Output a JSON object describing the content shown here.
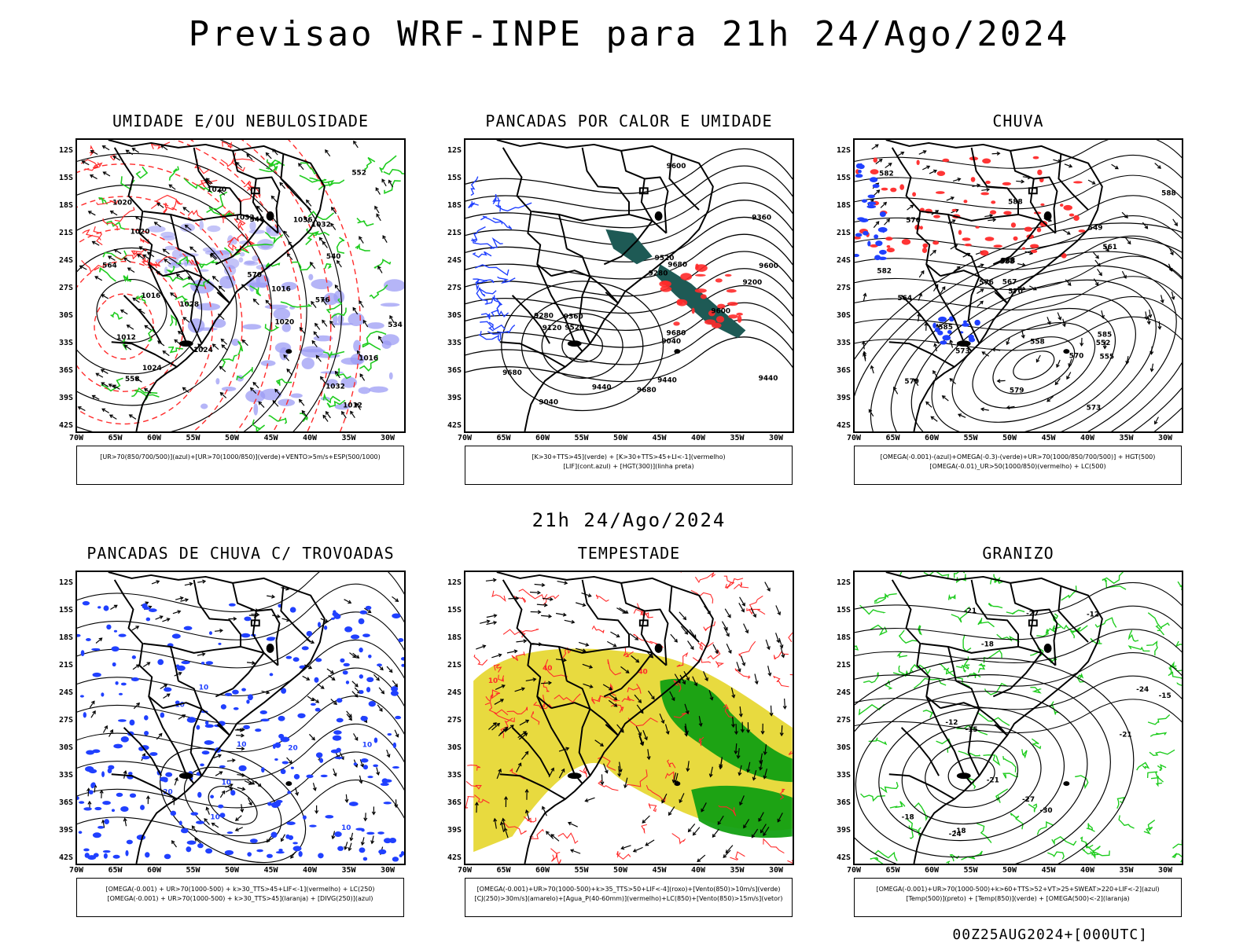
{
  "main_title": "Previsao WRF-INPE  para 21h 24/Ago/2024",
  "mid_title": "21h 24/Ago/2024",
  "timestamp": "00Z25AUG2024+[000UTC]",
  "lat_labels": [
    "12S",
    "15S",
    "18S",
    "21S",
    "24S",
    "27S",
    "30S",
    "33S",
    "36S",
    "39S",
    "42S"
  ],
  "lon_labels": [
    "70W",
    "65W",
    "60W",
    "55W",
    "50W",
    "45W",
    "40W",
    "35W",
    "30W"
  ],
  "panels": [
    {
      "title": "UMIDADE E/OU NEBULOSIDADE",
      "legend": [
        "[UR>70(850/700/500)](azul)+[UR>70(1000/850)](verde)+VENTO>5m/s+ESP(500/1000)"
      ],
      "contour_labels": [
        "1012",
        "1016",
        "1020",
        "1020",
        "1016",
        "1020",
        "1024",
        "1028",
        "1032",
        "1032",
        "1036",
        "1032",
        "1024",
        "1020",
        "1016",
        "1012",
        "576",
        "570",
        "564",
        "558",
        "552",
        "546",
        "540",
        "534"
      ]
    },
    {
      "title": "PANCADAS POR CALOR E UMIDADE",
      "legend": [
        "[K>30+TTS>45](verde) + [K>30+TTS>45+LI<-1](vermelho)",
        "[LIF](cont.azul) + [HGT(300)](linha preta)"
      ],
      "contour_labels": [
        "9680",
        "9680",
        "9680",
        "9680",
        "9600",
        "9600",
        "9600",
        "9520",
        "9520",
        "9440",
        "9440",
        "9360",
        "9360",
        "9280",
        "9280",
        "9200",
        "9120",
        "9040",
        "9040",
        "9440"
      ]
    },
    {
      "title": "CHUVA",
      "legend": [
        "[OMEGA(-0.001)-(azul)+OMEGA(-0.3)-(verde)+UR>70(1000/850/700/500)] + HGT(500)",
        "[OMEGA(-0.01)_UR>50(1000/850)(vermelho) + LC(500)"
      ],
      "contour_labels": [
        "588",
        "588",
        "588",
        "585",
        "582",
        "579",
        "576",
        "573",
        "570",
        "567",
        "564",
        "561",
        "558",
        "555",
        "552",
        "549",
        "570",
        "573",
        "576",
        "579",
        "582",
        "585",
        "588"
      ]
    },
    {
      "title": "PANCADAS DE CHUVA C/ TROVOADAS",
      "legend": [
        "[OMEGA(-0.001) + UR>70(1000-500) + k>30_TTS>45+LIF<-1](vermelho) + LC(250)",
        "[OMEGA(-0.001) + UR>70(1000-500) + k>30_TTS>45](laranja) + [DIVG(250)](azul)"
      ],
      "contour_labels": [
        "10",
        "10",
        "10",
        "10",
        "20",
        "10",
        "20",
        "10",
        "10"
      ]
    },
    {
      "title": "TEMPESTADE",
      "legend": [
        "[OMEGA(-0.001)+UR>70(1000-500)+k>35_TTS>50+LIF<-4](roxo)+[Vento(850)>10m/s](verde)",
        "[CJ(250)>30m/s](amarelo)+[Agua_P(40-60mm)](vermelho)+LC(850)+[Vento(850)>15m/s](vetor)"
      ],
      "contour_labels": [
        "10",
        "40",
        "40"
      ]
    },
    {
      "title": "GRANIZO",
      "legend": [
        "[OMEGA(-0.001)+UR>70(1000-500)+k>60+TTS>52+VT>25+SWEAT>220+LIF<-2](azul)",
        "[Temp(500)](preto) + [Temp(850)](verde) + [OMEGA(500)<-2](laranja)"
      ],
      "contour_labels": [
        "-21",
        "-12",
        "-18",
        "-15",
        "-24",
        "-27",
        "-30",
        "-21",
        "-18",
        "-24",
        "-12",
        "-15",
        "-18",
        "-21",
        "-27"
      ]
    }
  ],
  "colors": {
    "contour_black": "#000000",
    "red": "#ff2a2a",
    "green": "#1fcc1f",
    "blue": "#2040ff",
    "lavender": "#9c9cf4",
    "yellow": "#e6d62a",
    "dark_green": "#12a012",
    "teal": "#1e5a55"
  }
}
